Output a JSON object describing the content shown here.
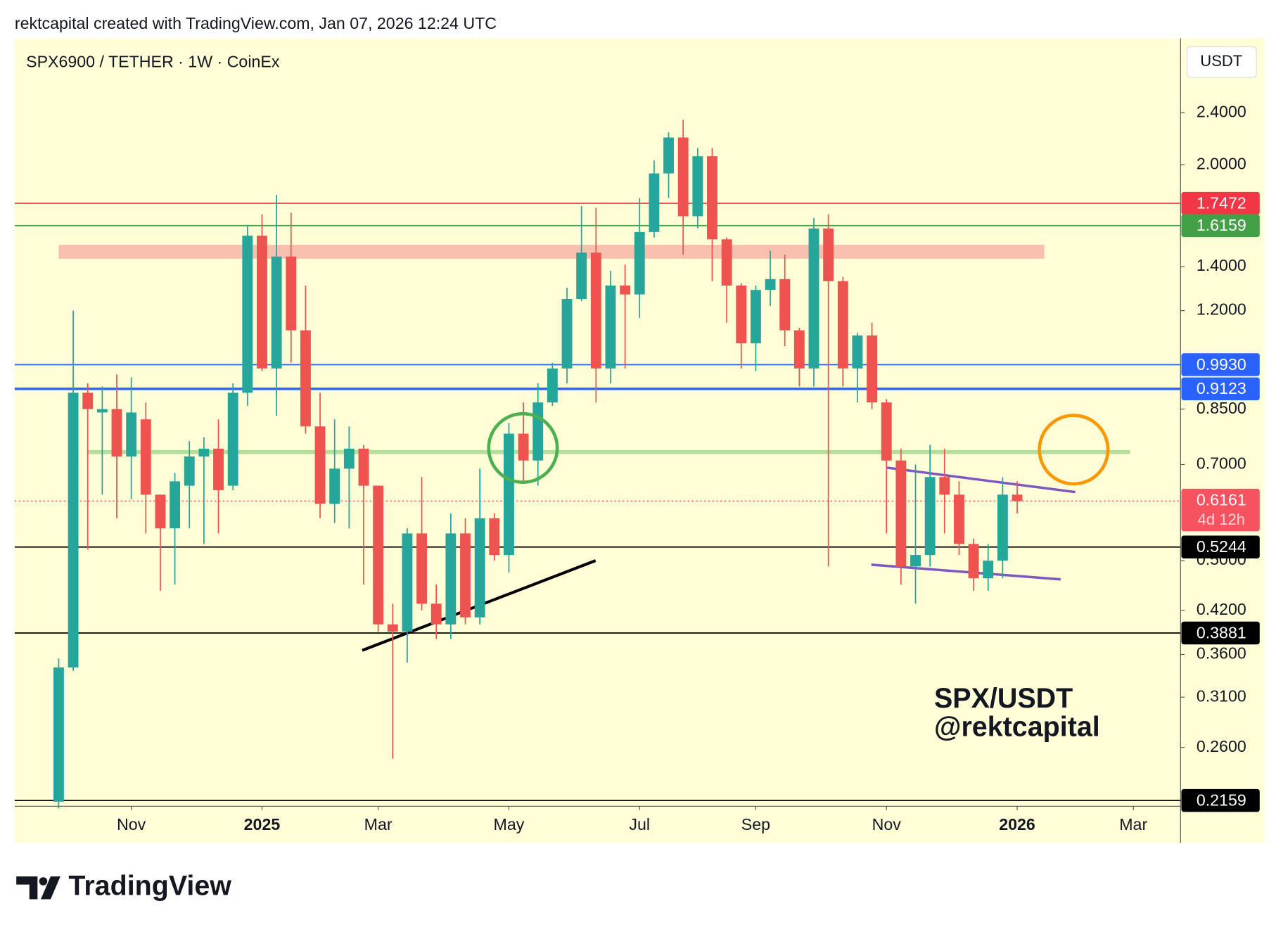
{
  "header": "rektcapital created with TradingView.com, Jan 07, 2026 12:24 UTC",
  "footer": "TradingView",
  "chart_data": {
    "type": "candlestick",
    "title": "SPX6900 / TETHER · 1W · CoinEx",
    "currency": "USDT",
    "watermark": [
      "SPX/USDT",
      "@rektcapital"
    ],
    "log_scale": true,
    "up_color": "#26a69a",
    "down_color": "#ef5350",
    "series": {
      "open": [
        0.215,
        0.344,
        0.9,
        0.84,
        0.85,
        0.72,
        0.82,
        0.63,
        0.56,
        0.65,
        0.72,
        0.74,
        0.65,
        0.9,
        1.56,
        0.98,
        1.45,
        1.12,
        0.8,
        0.61,
        0.69,
        0.74,
        0.65,
        0.4,
        0.39,
        0.55,
        0.43,
        0.4,
        0.55,
        0.41,
        0.58,
        0.51,
        0.78,
        0.71,
        0.87,
        0.98,
        1.25,
        1.47,
        0.98,
        1.31,
        1.27,
        1.58,
        1.94,
        2.2,
        1.67,
        2.06,
        1.54,
        1.31,
        1.07,
        1.29,
        1.34,
        1.12,
        0.98,
        1.6,
        1.33,
        0.98,
        1.1,
        0.87,
        0.71,
        0.49,
        0.51,
        0.67,
        0.63,
        0.53,
        0.47,
        0.5,
        0.63
      ],
      "high": [
        0.355,
        1.2,
        0.93,
        0.92,
        0.96,
        0.95,
        0.87,
        0.63,
        0.68,
        0.76,
        0.77,
        0.82,
        0.93,
        1.62,
        1.68,
        1.8,
        1.69,
        1.31,
        0.9,
        0.82,
        0.8,
        0.75,
        0.65,
        0.43,
        0.56,
        0.67,
        0.46,
        0.59,
        0.58,
        0.69,
        0.59,
        0.81,
        0.87,
        0.93,
        1.0,
        1.3,
        1.73,
        1.72,
        1.38,
        1.41,
        1.78,
        2.03,
        2.24,
        2.34,
        2.12,
        2.12,
        1.55,
        1.32,
        1.31,
        1.48,
        1.46,
        1.13,
        1.66,
        1.68,
        1.35,
        1.11,
        1.15,
        0.88,
        0.74,
        0.7,
        0.75,
        0.74,
        0.66,
        0.54,
        0.53,
        0.67,
        0.66
      ],
      "low": [
        0.21,
        0.34,
        0.52,
        0.63,
        0.58,
        0.62,
        0.55,
        0.45,
        0.46,
        0.56,
        0.53,
        0.55,
        0.64,
        0.86,
        0.97,
        0.83,
        1.0,
        0.78,
        0.58,
        0.57,
        0.56,
        0.46,
        0.39,
        0.25,
        0.35,
        0.42,
        0.38,
        0.38,
        0.4,
        0.4,
        0.5,
        0.48,
        0.66,
        0.65,
        0.86,
        0.93,
        1.24,
        0.87,
        0.93,
        0.98,
        1.17,
        1.55,
        1.78,
        1.46,
        1.6,
        1.33,
        1.15,
        0.98,
        0.97,
        1.22,
        1.06,
        0.92,
        0.92,
        0.49,
        0.92,
        0.87,
        0.85,
        0.55,
        0.46,
        0.43,
        0.49,
        0.55,
        0.51,
        0.45,
        0.45,
        0.47,
        0.59
      ],
      "close": [
        0.344,
        0.9,
        0.85,
        0.85,
        0.72,
        0.84,
        0.63,
        0.56,
        0.66,
        0.72,
        0.74,
        0.64,
        0.9,
        1.56,
        0.98,
        1.45,
        1.12,
        0.8,
        0.61,
        0.69,
        0.74,
        0.65,
        0.4,
        0.39,
        0.55,
        0.43,
        0.4,
        0.55,
        0.41,
        0.58,
        0.51,
        0.78,
        0.71,
        0.87,
        0.98,
        1.25,
        1.47,
        0.98,
        1.31,
        1.27,
        1.58,
        1.94,
        2.2,
        1.67,
        2.06,
        1.54,
        1.31,
        1.07,
        1.29,
        1.34,
        1.12,
        0.98,
        1.6,
        1.33,
        0.98,
        1.1,
        0.87,
        0.71,
        0.49,
        0.51,
        0.67,
        0.63,
        0.53,
        0.47,
        0.5,
        0.63,
        0.6161
      ]
    },
    "xlim": [
      -3.03,
      77.25
    ],
    "xticks": [
      {
        "value": 5,
        "label": "Nov"
      },
      {
        "value": 14,
        "label": "2025"
      },
      {
        "value": 22,
        "label": "Mar"
      },
      {
        "value": 31,
        "label": "May"
      },
      {
        "value": 40,
        "label": "Jul"
      },
      {
        "value": 48,
        "label": "Sep"
      },
      {
        "value": 57,
        "label": "Nov"
      },
      {
        "value": 66,
        "label": "2026"
      },
      {
        "value": 74,
        "label": "Mar"
      }
    ],
    "ylim": [
      0.2116,
      3.113
    ],
    "yticks": [
      {
        "value": 2.4,
        "label": "2.4000"
      },
      {
        "value": 2.0,
        "label": "2.0000"
      },
      {
        "value": 1.4,
        "label": "1.4000"
      },
      {
        "value": 1.2,
        "label": "1.2000"
      },
      {
        "value": 0.85,
        "label": "0.8500"
      },
      {
        "value": 0.7,
        "label": "0.7000"
      },
      {
        "value": 0.5,
        "label": "0.5000"
      },
      {
        "value": 0.42,
        "label": "0.4200"
      },
      {
        "value": 0.36,
        "label": "0.3600"
      },
      {
        "value": 0.31,
        "label": "0.3100"
      },
      {
        "value": 0.26,
        "label": "0.2600"
      }
    ],
    "levels": [
      {
        "value": 1.7472,
        "label": "1.7472",
        "color": "#f23645"
      },
      {
        "value": 1.6159,
        "label": "1.6159",
        "color": "#43a047"
      },
      {
        "value": 0.993,
        "label": "0.9930",
        "color": "#2962ff"
      },
      {
        "value": 0.9123,
        "label": "0.9123",
        "color": "#2962ff",
        "thick": true
      },
      {
        "value": 0.5244,
        "label": "0.5244",
        "color": "#000000"
      },
      {
        "value": 0.3881,
        "label": "0.3881",
        "color": "#000000"
      },
      {
        "value": 0.2159,
        "label": "0.2159",
        "color": "#000000"
      }
    ],
    "last_price": {
      "value": 0.6161,
      "label": "0.6161",
      "countdown": "4d 12h",
      "color": "#f7525f"
    }
  }
}
